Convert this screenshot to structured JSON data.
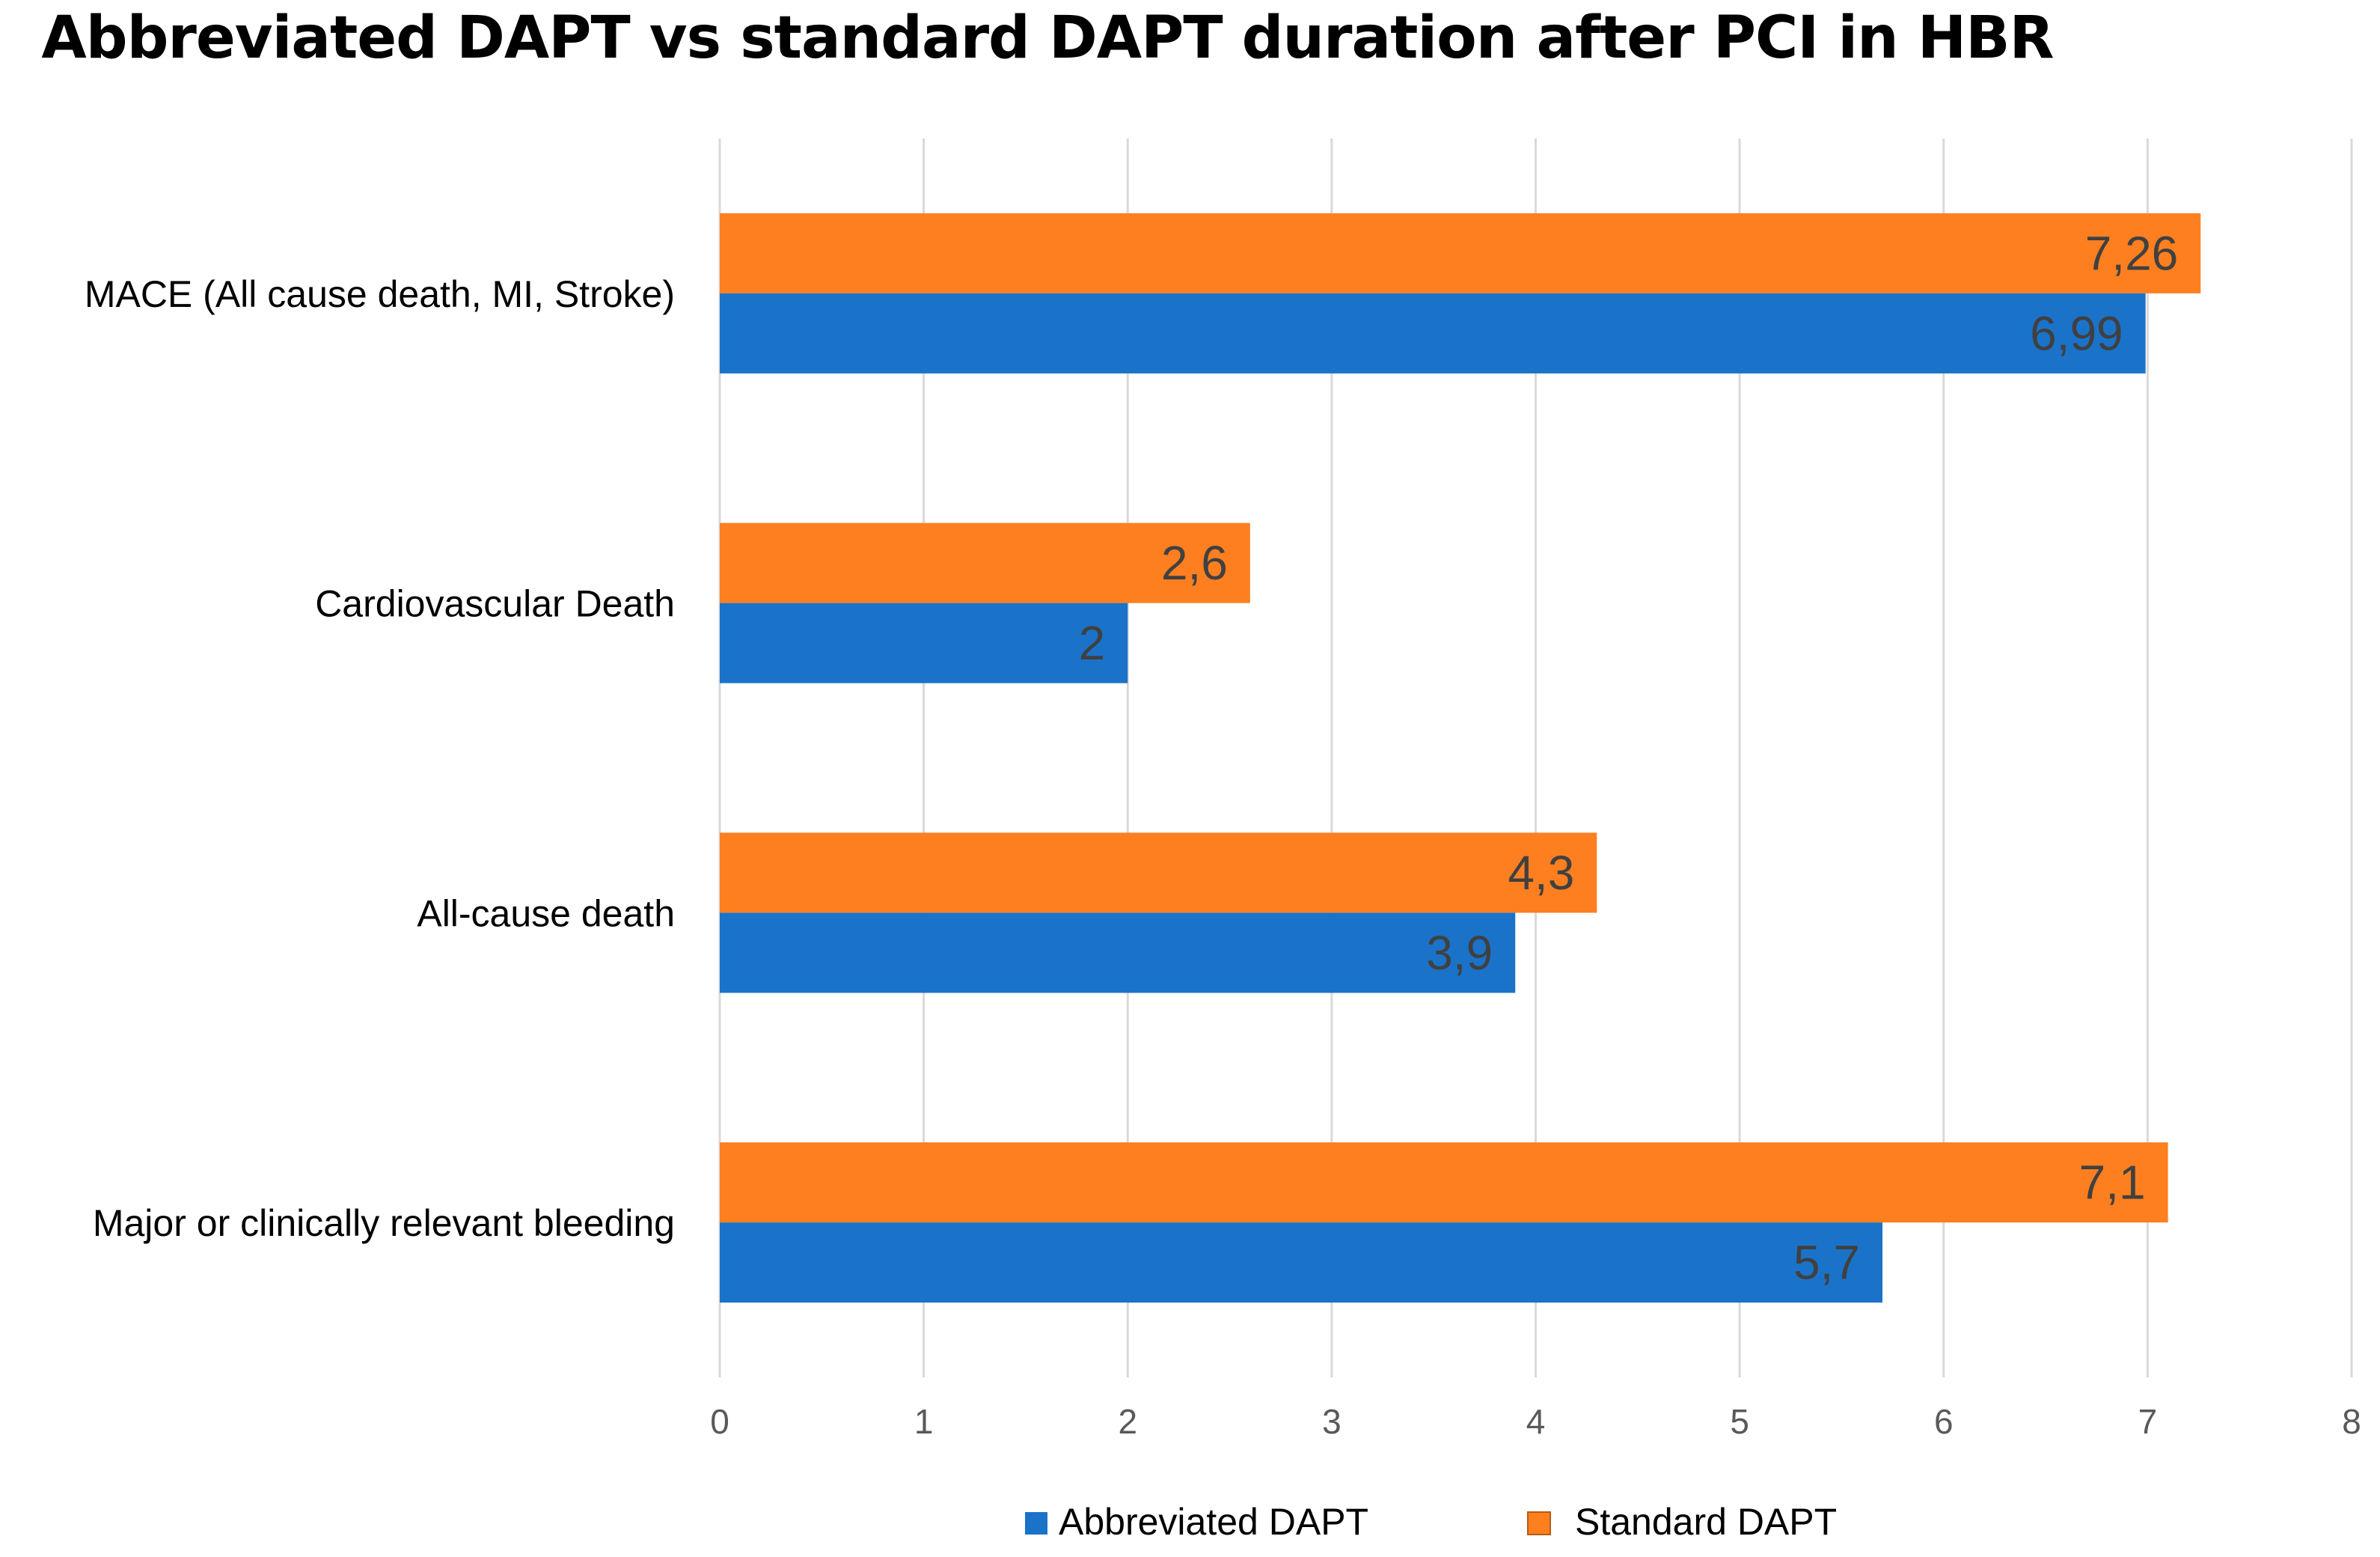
{
  "chart_data": {
    "type": "bar",
    "orientation": "horizontal",
    "title": "Abbreviated DAPT vs standard DAPT duration after PCI in HBR",
    "categories": [
      "MACE (All cause death, MI, Stroke)",
      "Cardiovascular Death",
      "All-cause death",
      "Major or clinically relevant bleeding"
    ],
    "series": [
      {
        "name": "Abbreviated DAPT",
        "color": "#1a73c9",
        "values": [
          6.99,
          2,
          3.9,
          5.7
        ],
        "labels": [
          "6,99",
          "2",
          "3,9",
          "5,7"
        ]
      },
      {
        "name": "Standard DAPT",
        "color": "#fd7f20",
        "values": [
          7.26,
          2.6,
          4.3,
          7.1
        ],
        "labels": [
          "7,26",
          "2,6",
          "4,3",
          "7,1"
        ]
      }
    ],
    "xlim": [
      0,
      8
    ],
    "xticks": [
      "0",
      "1",
      "2",
      "3",
      "4",
      "5",
      "6",
      "7",
      "8"
    ],
    "xlabel": "",
    "ylabel": "",
    "grid": "vertical",
    "legend": "bottom"
  }
}
